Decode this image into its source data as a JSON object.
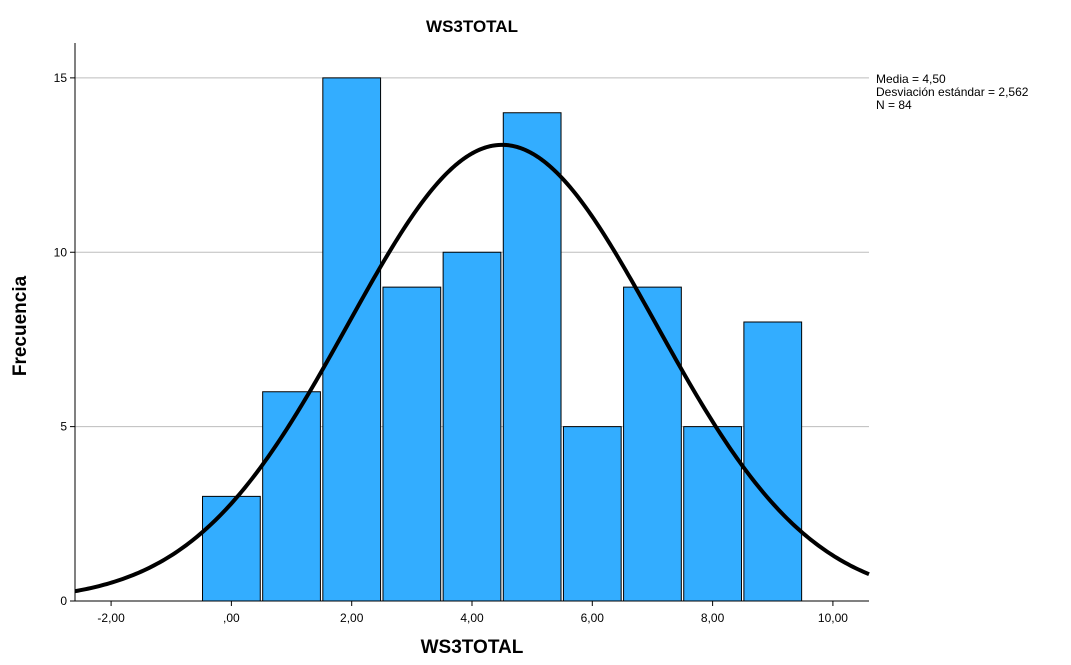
{
  "chart_data": {
    "type": "bar",
    "title": "WS3TOTAL",
    "xlabel": "WS3TOTAL",
    "ylabel": "Frecuencia",
    "bin_width": 1,
    "bins": [
      {
        "center": 0,
        "count": 3
      },
      {
        "center": 1,
        "count": 6
      },
      {
        "center": 2,
        "count": 15
      },
      {
        "center": 3,
        "count": 9
      },
      {
        "center": 4,
        "count": 10
      },
      {
        "center": 5,
        "count": 14
      },
      {
        "center": 6,
        "count": 5
      },
      {
        "center": 7,
        "count": 9
      },
      {
        "center": 8,
        "count": 5
      },
      {
        "center": 9,
        "count": 8
      }
    ],
    "xlim": [
      -2.6,
      10.6
    ],
    "ylim": [
      0,
      16
    ],
    "x_ticks": [
      {
        "value": -2,
        "label": "-2,00"
      },
      {
        "value": 0,
        "label": ",00"
      },
      {
        "value": 2,
        "label": "2,00"
      },
      {
        "value": 4,
        "label": "4,00"
      },
      {
        "value": 6,
        "label": "6,00"
      },
      {
        "value": 8,
        "label": "8,00"
      },
      {
        "value": 10,
        "label": "10,00"
      }
    ],
    "y_ticks": [
      {
        "value": 0,
        "label": "0"
      },
      {
        "value": 5,
        "label": "5"
      },
      {
        "value": 10,
        "label": "10"
      },
      {
        "value": 15,
        "label": "15"
      }
    ],
    "grid": "horizontal",
    "normal_curve": {
      "mean": 4.5,
      "std": 2.562,
      "n": 84
    },
    "stats_lines": [
      "Media = 4,50",
      "Desviación estándar = 2,562",
      "N = 84"
    ],
    "stats_placement": "top-right, outside plot",
    "colors": {
      "bar_fill": "#33adff",
      "bar_stroke": "#000000",
      "curve": "#000000",
      "grid": "#bdbdbd",
      "axis": "#000000"
    }
  }
}
